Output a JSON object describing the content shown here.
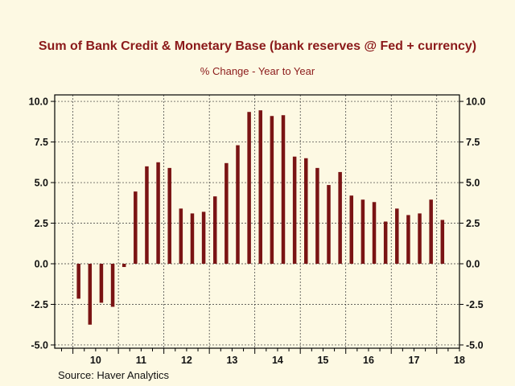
{
  "chart_data": {
    "type": "bar",
    "title": "Sum of Bank Credit & Monetary Base (bank reserves @ Fed + currency)",
    "subtitle": "% Change - Year to Year",
    "source": "Source:   Haver Analytics",
    "x_labels": [
      "10",
      "11",
      "12",
      "13",
      "14",
      "15",
      "16",
      "17",
      "18"
    ],
    "x_range": [
      2009.6,
      2018.5
    ],
    "ylim": [
      -5.2,
      10.4
    ],
    "y_ticks": [
      10.0,
      7.5,
      5.0,
      2.5,
      0.0,
      -2.5,
      -5.0
    ],
    "y_tick_labels": [
      "10.0",
      "7.5",
      "5.0",
      "2.5",
      "0.0",
      "-2.5",
      "-5.0"
    ],
    "grid": true,
    "bar_color": "#7a1414",
    "title_color": "#8b1a1a",
    "points": [
      {
        "x": 2010.125,
        "value": -2.15
      },
      {
        "x": 2010.375,
        "value": -3.75
      },
      {
        "x": 2010.625,
        "value": -2.4
      },
      {
        "x": 2010.875,
        "value": -2.65
      },
      {
        "x": 2011.125,
        "value": -0.2
      },
      {
        "x": 2011.375,
        "value": 4.45
      },
      {
        "x": 2011.625,
        "value": 6.0
      },
      {
        "x": 2011.875,
        "value": 6.25
      },
      {
        "x": 2012.125,
        "value": 5.9
      },
      {
        "x": 2012.375,
        "value": 3.4
      },
      {
        "x": 2012.625,
        "value": 3.1
      },
      {
        "x": 2012.875,
        "value": 3.2
      },
      {
        "x": 2013.125,
        "value": 4.15
      },
      {
        "x": 2013.375,
        "value": 6.2
      },
      {
        "x": 2013.625,
        "value": 7.3
      },
      {
        "x": 2013.875,
        "value": 9.35
      },
      {
        "x": 2014.125,
        "value": 9.45
      },
      {
        "x": 2014.375,
        "value": 9.1
      },
      {
        "x": 2014.625,
        "value": 9.15
      },
      {
        "x": 2014.875,
        "value": 6.6
      },
      {
        "x": 2015.125,
        "value": 6.5
      },
      {
        "x": 2015.375,
        "value": 5.9
      },
      {
        "x": 2015.625,
        "value": 4.85
      },
      {
        "x": 2015.875,
        "value": 5.65
      },
      {
        "x": 2016.125,
        "value": 4.2
      },
      {
        "x": 2016.375,
        "value": 3.95
      },
      {
        "x": 2016.625,
        "value": 3.8
      },
      {
        "x": 2016.875,
        "value": 2.6
      },
      {
        "x": 2017.125,
        "value": 3.4
      },
      {
        "x": 2017.375,
        "value": 3.0
      },
      {
        "x": 2017.625,
        "value": 3.1
      },
      {
        "x": 2017.875,
        "value": 3.95
      },
      {
        "x": 2018.125,
        "value": 2.7
      }
    ]
  }
}
